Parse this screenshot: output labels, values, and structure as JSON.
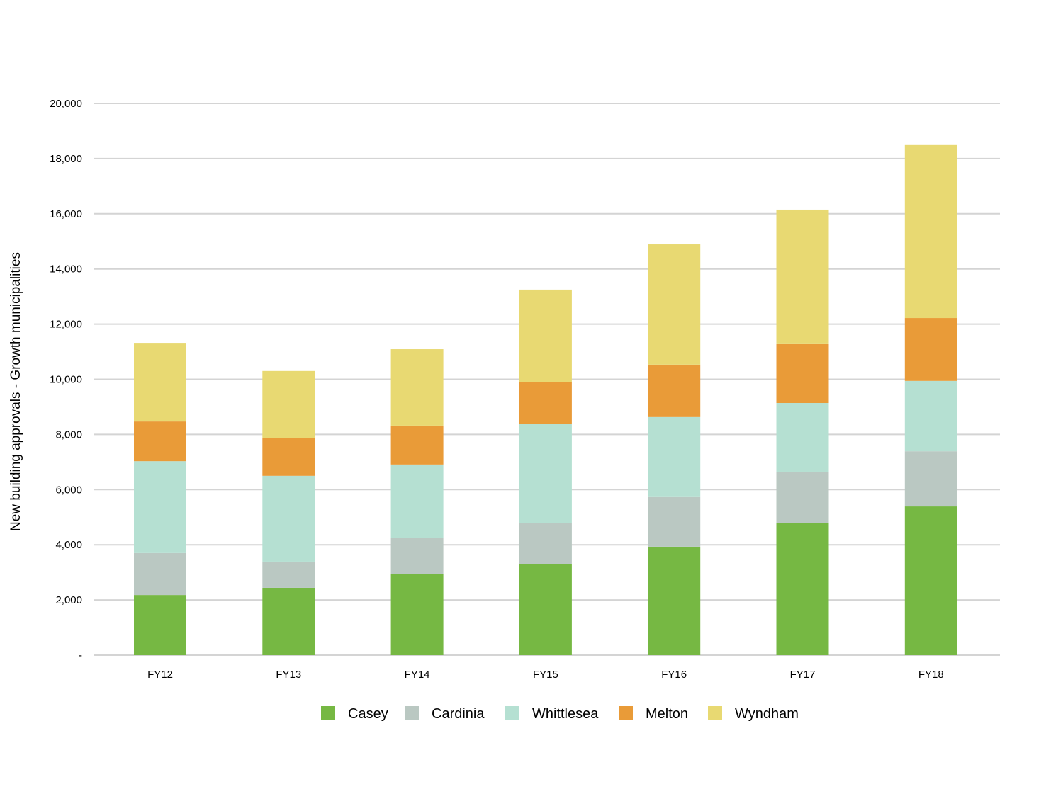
{
  "chart_data": {
    "type": "bar",
    "stacked": true,
    "title": "",
    "xlabel": "",
    "ylabel": "New building approvals - Growth municipalities",
    "ylim": [
      0,
      20000
    ],
    "yticks": [
      0,
      2000,
      4000,
      6000,
      8000,
      10000,
      12000,
      14000,
      16000,
      18000,
      20000
    ],
    "ytick_labels": [
      "-",
      "2,000",
      "4,000",
      "6,000",
      "8,000",
      "10,000",
      "12,000",
      "14,000",
      "16,000",
      "18,000",
      "20,000"
    ],
    "grid": true,
    "legend_position": "bottom",
    "categories": [
      "FY12",
      "FY13",
      "FY14",
      "FY15",
      "FY16",
      "FY17",
      "FY18"
    ],
    "series": [
      {
        "name": "Casey",
        "color": "#76b843",
        "values": [
          2180,
          2440,
          2950,
          3310,
          3930,
          4780,
          5390
        ]
      },
      {
        "name": "Cardinia",
        "color": "#bac8c2",
        "values": [
          1520,
          950,
          1310,
          1470,
          1800,
          1870,
          2000
        ]
      },
      {
        "name": "Whittlesea",
        "color": "#b5e0d2",
        "values": [
          3330,
          3110,
          2650,
          3590,
          2900,
          2490,
          2550
        ]
      },
      {
        "name": "Melton",
        "color": "#e99b38",
        "values": [
          1440,
          1360,
          1410,
          1540,
          1900,
          2160,
          2280
        ]
      },
      {
        "name": "Wyndham",
        "color": "#e8d972",
        "values": [
          2850,
          2440,
          2770,
          3340,
          4360,
          4850,
          6270
        ]
      }
    ]
  }
}
